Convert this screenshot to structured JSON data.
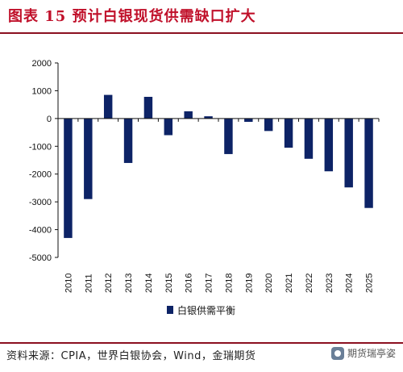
{
  "header": {
    "title": "图表 15 预计白银现货供需缺口扩大"
  },
  "footer": {
    "source": "资料来源：CPIA，世界白银协会，Wind，金瑞期货"
  },
  "watermark": {
    "text": "期货瑞亭姿"
  },
  "colors": {
    "bar": "#0d2366",
    "title": "#c0102a",
    "rule": "#8b1020"
  },
  "chart_data": {
    "type": "bar",
    "categories": [
      "2010",
      "2011",
      "2012",
      "2013",
      "2014",
      "2015",
      "2016",
      "2017",
      "2018",
      "2019",
      "2020",
      "2021",
      "2022",
      "2023",
      "2024",
      "2025"
    ],
    "series": [
      {
        "name": "白银供需平衡",
        "values": [
          -4300,
          -2900,
          850,
          -1600,
          780,
          -600,
          260,
          80,
          -1280,
          -120,
          -450,
          -1050,
          -1450,
          -1900,
          -2480,
          -3220
        ]
      }
    ],
    "ylim": [
      -5000,
      2000
    ],
    "yticks": [
      2000,
      1000,
      0,
      -1000,
      -2000,
      -3000,
      -4000,
      -5000
    ],
    "xlabel": "",
    "ylabel": "",
    "legend_position": "bottom",
    "grid": false
  }
}
